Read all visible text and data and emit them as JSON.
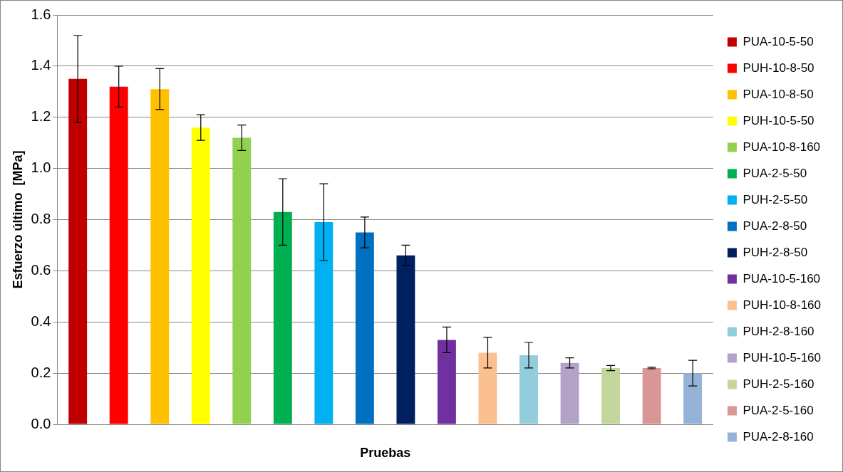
{
  "chart_data": {
    "type": "bar",
    "xlabel": "Pruebas",
    "ylabel": "Esfuerzo último  [MPa]",
    "categories": [
      null,
      null,
      null,
      null,
      null,
      null,
      null,
      null,
      null,
      null,
      null,
      null,
      null,
      null,
      null,
      null
    ],
    "ylim": [
      0,
      1.6
    ],
    "yticks": [
      {
        "value": 0,
        "label": "0.0"
      },
      {
        "value": 0.2,
        "label": "0.2"
      },
      {
        "value": 0.4,
        "label": "0.4"
      },
      {
        "value": 0.6,
        "label": "0.6"
      },
      {
        "value": 0.8,
        "label": "0.8"
      },
      {
        "value": 1,
        "label": "1.0"
      },
      {
        "value": 1.2,
        "label": "1.2"
      },
      {
        "value": 1.4,
        "label": "1.4"
      },
      {
        "value": 1.6,
        "label": "1.6"
      }
    ],
    "grid": "y",
    "legend": "right",
    "series": [
      {
        "name": "PUA-10-5-50",
        "color": "#c00000",
        "values": [
          1.35,
          null,
          null,
          null,
          null,
          null,
          null,
          null,
          null,
          null,
          null,
          null,
          null,
          null,
          null,
          null
        ],
        "errors": [
          0.17,
          null,
          null,
          null,
          null,
          null,
          null,
          null,
          null,
          null,
          null,
          null,
          null,
          null,
          null,
          null
        ]
      },
      {
        "name": "PUH-10-8-50",
        "color": "#ff0000",
        "values": [
          null,
          1.32,
          null,
          null,
          null,
          null,
          null,
          null,
          null,
          null,
          null,
          null,
          null,
          null,
          null,
          null
        ],
        "errors": [
          null,
          0.08,
          null,
          null,
          null,
          null,
          null,
          null,
          null,
          null,
          null,
          null,
          null,
          null,
          null,
          null
        ]
      },
      {
        "name": "PUA-10-8-50",
        "color": "#ffc000",
        "values": [
          null,
          null,
          1.31,
          null,
          null,
          null,
          null,
          null,
          null,
          null,
          null,
          null,
          null,
          null,
          null,
          null
        ],
        "errors": [
          null,
          null,
          0.08,
          null,
          null,
          null,
          null,
          null,
          null,
          null,
          null,
          null,
          null,
          null,
          null,
          null
        ]
      },
      {
        "name": "PUH-10-5-50",
        "color": "#ffff00",
        "values": [
          null,
          null,
          null,
          1.16,
          null,
          null,
          null,
          null,
          null,
          null,
          null,
          null,
          null,
          null,
          null,
          null
        ],
        "errors": [
          null,
          null,
          null,
          0.05,
          null,
          null,
          null,
          null,
          null,
          null,
          null,
          null,
          null,
          null,
          null,
          null
        ]
      },
      {
        "name": "PUA-10-8-160",
        "color": "#92d050",
        "values": [
          null,
          null,
          null,
          null,
          1.12,
          null,
          null,
          null,
          null,
          null,
          null,
          null,
          null,
          null,
          null,
          null
        ],
        "errors": [
          null,
          null,
          null,
          null,
          0.05,
          null,
          null,
          null,
          null,
          null,
          null,
          null,
          null,
          null,
          null,
          null
        ]
      },
      {
        "name": "PUA-2-5-50",
        "color": "#00b050",
        "values": [
          null,
          null,
          null,
          null,
          null,
          0.83,
          null,
          null,
          null,
          null,
          null,
          null,
          null,
          null,
          null,
          null
        ],
        "errors": [
          null,
          null,
          null,
          null,
          null,
          0.13,
          null,
          null,
          null,
          null,
          null,
          null,
          null,
          null,
          null,
          null
        ]
      },
      {
        "name": "PUH-2-5-50",
        "color": "#00b0f0",
        "values": [
          null,
          null,
          null,
          null,
          null,
          null,
          0.79,
          null,
          null,
          null,
          null,
          null,
          null,
          null,
          null,
          null
        ],
        "errors": [
          null,
          null,
          null,
          null,
          null,
          null,
          0.15,
          null,
          null,
          null,
          null,
          null,
          null,
          null,
          null,
          null
        ]
      },
      {
        "name": "PUA-2-8-50",
        "color": "#0070c0",
        "values": [
          null,
          null,
          null,
          null,
          null,
          null,
          null,
          0.75,
          null,
          null,
          null,
          null,
          null,
          null,
          null,
          null
        ],
        "errors": [
          null,
          null,
          null,
          null,
          null,
          null,
          null,
          0.06,
          null,
          null,
          null,
          null,
          null,
          null,
          null,
          null
        ]
      },
      {
        "name": "PUH-2-8-50",
        "color": "#002060",
        "values": [
          null,
          null,
          null,
          null,
          null,
          null,
          null,
          null,
          0.66,
          null,
          null,
          null,
          null,
          null,
          null,
          null
        ],
        "errors": [
          null,
          null,
          null,
          null,
          null,
          null,
          null,
          null,
          0.04,
          null,
          null,
          null,
          null,
          null,
          null,
          null
        ]
      },
      {
        "name": "PUA-10-5-160",
        "color": "#7030a0",
        "values": [
          null,
          null,
          null,
          null,
          null,
          null,
          null,
          null,
          null,
          0.33,
          null,
          null,
          null,
          null,
          null,
          null
        ],
        "errors": [
          null,
          null,
          null,
          null,
          null,
          null,
          null,
          null,
          null,
          0.05,
          null,
          null,
          null,
          null,
          null,
          null
        ]
      },
      {
        "name": "PUH-10-8-160",
        "color": "#fac090",
        "values": [
          null,
          null,
          null,
          null,
          null,
          null,
          null,
          null,
          null,
          null,
          0.28,
          null,
          null,
          null,
          null,
          null
        ],
        "errors": [
          null,
          null,
          null,
          null,
          null,
          null,
          null,
          null,
          null,
          null,
          0.06,
          null,
          null,
          null,
          null,
          null
        ]
      },
      {
        "name": "PUH-2-8-160",
        "color": "#92cddc",
        "values": [
          null,
          null,
          null,
          null,
          null,
          null,
          null,
          null,
          null,
          null,
          null,
          0.27,
          null,
          null,
          null,
          null
        ],
        "errors": [
          null,
          null,
          null,
          null,
          null,
          null,
          null,
          null,
          null,
          null,
          null,
          0.05,
          null,
          null,
          null,
          null
        ]
      },
      {
        "name": "PUH-10-5-160",
        "color": "#b3a2c7",
        "values": [
          null,
          null,
          null,
          null,
          null,
          null,
          null,
          null,
          null,
          null,
          null,
          null,
          0.24,
          null,
          null,
          null
        ],
        "errors": [
          null,
          null,
          null,
          null,
          null,
          null,
          null,
          null,
          null,
          null,
          null,
          null,
          0.02,
          null,
          null,
          null
        ]
      },
      {
        "name": "PUH-2-5-160",
        "color": "#c3d69b",
        "values": [
          null,
          null,
          null,
          null,
          null,
          null,
          null,
          null,
          null,
          null,
          null,
          null,
          null,
          0.22,
          null,
          null
        ],
        "errors": [
          null,
          null,
          null,
          null,
          null,
          null,
          null,
          null,
          null,
          null,
          null,
          null,
          null,
          0.01,
          null,
          null
        ]
      },
      {
        "name": "PUA-2-5-160",
        "color": "#d99694",
        "values": [
          null,
          null,
          null,
          null,
          null,
          null,
          null,
          null,
          null,
          null,
          null,
          null,
          null,
          null,
          0.22,
          null
        ],
        "errors": [
          null,
          null,
          null,
          null,
          null,
          null,
          null,
          null,
          null,
          null,
          null,
          null,
          null,
          null,
          0.003,
          null
        ]
      },
      {
        "name": "PUA-2-8-160",
        "color": "#95b3d7",
        "values": [
          null,
          null,
          null,
          null,
          null,
          null,
          null,
          null,
          null,
          null,
          null,
          null,
          null,
          null,
          null,
          0.2
        ],
        "errors": [
          null,
          null,
          null,
          null,
          null,
          null,
          null,
          null,
          null,
          null,
          null,
          null,
          null,
          null,
          null,
          0.05
        ]
      }
    ]
  }
}
